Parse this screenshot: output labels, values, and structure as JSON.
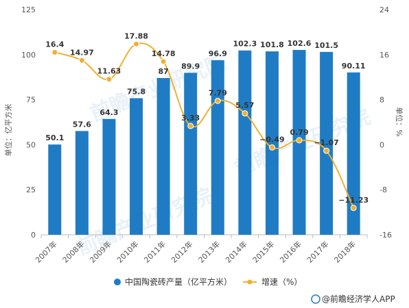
{
  "chart_data": {
    "type": "bar",
    "categories": [
      "2007年",
      "2008年",
      "2009年",
      "2010年",
      "2011年",
      "2012年",
      "2013年",
      "2014年",
      "2015年",
      "2016年",
      "2017年",
      "2018年"
    ],
    "series": [
      {
        "name": "中国陶瓷砖产量（亿平方米）",
        "type": "bar",
        "axis": "left",
        "color": "#1f7cc4",
        "values": [
          50.1,
          57.6,
          64.3,
          75.8,
          87,
          89.9,
          96.9,
          102.3,
          101.8,
          102.6,
          101.5,
          90.11
        ],
        "labels": [
          "50.1",
          "57.6",
          "64.3",
          "75.8",
          "87",
          "89.9",
          "96.9",
          "102.3",
          "101.8",
          "102.6",
          "101.5",
          "90.11"
        ]
      },
      {
        "name": "增速（%）",
        "type": "line",
        "axis": "right",
        "color": "#f0b030",
        "values": [
          16.4,
          14.97,
          11.63,
          17.88,
          14.78,
          3.33,
          7.79,
          5.57,
          -0.49,
          0.79,
          -1.07,
          -11.23
        ],
        "labels": [
          "16.4",
          "14.97",
          "11.63",
          "17.88",
          "14.78",
          "3.33",
          "7.79",
          "5.57",
          "−0.49",
          "0.79",
          "−1.07",
          "−11.23"
        ]
      }
    ],
    "ylabel": "单位：亿平方米",
    "y2label": "单位：%",
    "ylim": [
      0,
      125
    ],
    "y2lim": [
      -16,
      24
    ],
    "yticks": [
      "0",
      "25",
      "50",
      "75",
      "100",
      "125"
    ],
    "y2ticks": [
      "-16",
      "-8",
      "0",
      "8",
      "16",
      "24"
    ],
    "grid": false,
    "legend_position": "bottom"
  },
  "legend": {
    "bar_label": "中国陶瓷砖产量（亿平方米）",
    "line_label": "增速（%）"
  },
  "footer": {
    "source": "@前瞻经济学人APP"
  },
  "watermark": {
    "text": "前瞻产业研究院"
  },
  "colors": {
    "bar": "#1f7cc4",
    "line": "#f0b030",
    "axis": "#bbbbbb"
  }
}
